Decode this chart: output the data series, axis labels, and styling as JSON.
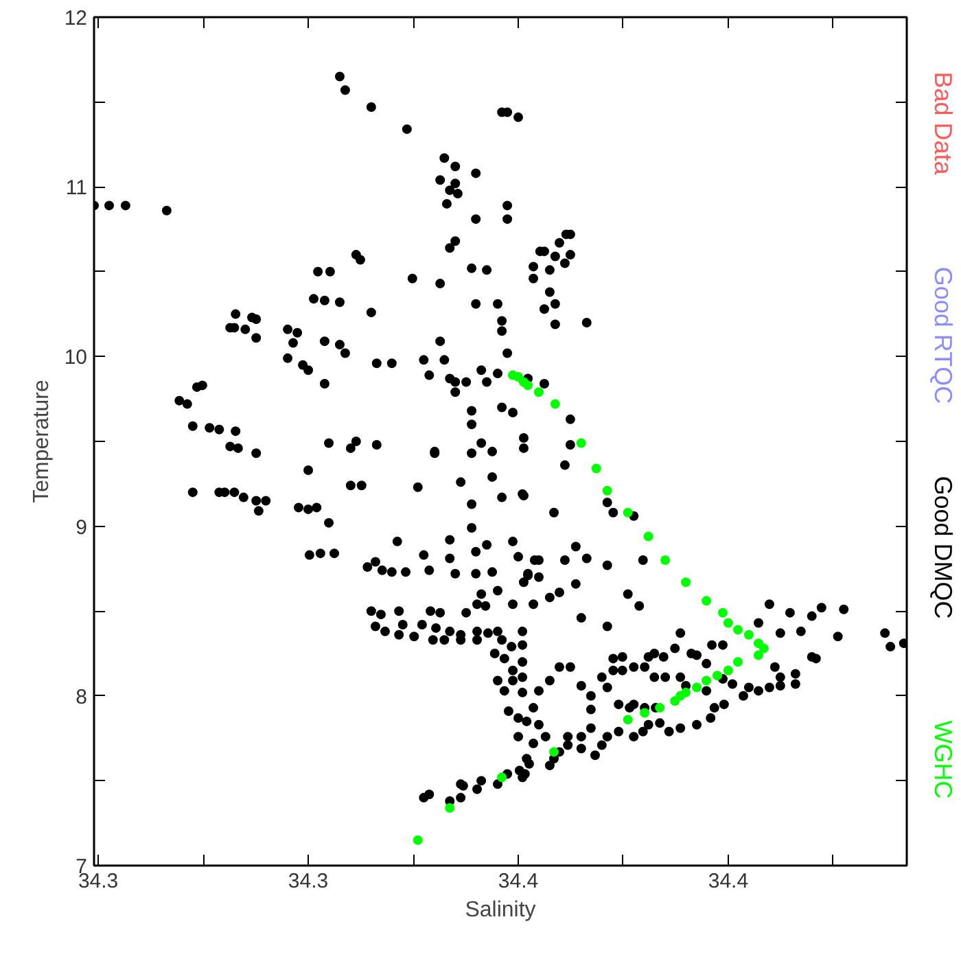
{
  "chart_data": {
    "type": "scatter",
    "xlabel": "Salinity",
    "ylabel": "Temperature",
    "xlim": [
      34.274,
      34.4675
    ],
    "ylim": [
      7,
      12
    ],
    "xticks": [
      {
        "value": 34.275,
        "label": "34.3"
      },
      {
        "value": 34.3,
        "label": null
      },
      {
        "value": 34.325,
        "label": "34.3"
      },
      {
        "value": 34.35,
        "label": null
      },
      {
        "value": 34.375,
        "label": "34.4"
      },
      {
        "value": 34.4,
        "label": null
      },
      {
        "value": 34.425,
        "label": "34.4"
      },
      {
        "value": 34.45,
        "label": null
      }
    ],
    "yticks": [
      7,
      {
        "value": 7.5,
        "label": null
      },
      8,
      {
        "value": 8.5,
        "label": null
      },
      9,
      {
        "value": 9.5,
        "label": null
      },
      10,
      {
        "value": 10.5,
        "label": null
      },
      11,
      {
        "value": 11.5,
        "label": null
      },
      12
    ],
    "grid": false,
    "marker": "circle",
    "series": [
      {
        "name": "Bad Data",
        "color": "#ff5a5a"
      },
      {
        "name": "Good RTQC",
        "color": "#8c8cff"
      },
      {
        "name": "Good DMQC",
        "color": "#000000",
        "x": [
          34.3325,
          34.3338,
          34.34,
          34.3485,
          34.3574,
          34.36,
          34.3649,
          34.3564,
          34.36,
          34.3587,
          34.3606,
          34.358,
          34.3711,
          34.3724,
          34.375,
          34.3649,
          34.3724,
          34.3724,
          34.274,
          34.2776,
          34.2815,
          34.2913,
          34.3587,
          34.36,
          34.3364,
          34.3374,
          34.3273,
          34.3302,
          34.3639,
          34.3675,
          34.3786,
          34.3786,
          34.3498,
          34.3564,
          34.3263,
          34.3289,
          34.3325,
          34.34,
          34.3649,
          34.3701,
          34.3711,
          34.3711,
          34.3724,
          34.3201,
          34.3224,
          34.3214,
          34.3289,
          34.3325,
          34.3338,
          34.3201,
          34.3237,
          34.325,
          34.3289,
          34.3413,
          34.3449,
          34.3525,
          34.3574,
          34.3564,
          34.3538,
          34.3587,
          34.36,
          34.3626,
          34.36,
          34.3662,
          34.3675,
          34.3701,
          34.3711,
          34.3737,
          34.3639,
          34.3639,
          34.3064,
          34.3074,
          34.3077,
          34.31,
          34.3116,
          34.3126,
          34.3126,
          34.2985,
          34.2998,
          34.2943,
          34.2962,
          34.2975,
          34.3015,
          34.3038,
          34.3077,
          34.3064,
          34.3083,
          34.3126,
          34.3299,
          34.3351,
          34.3364,
          34.3413,
          34.3551,
          34.3639,
          34.3662,
          34.3688,
          34.3763,
          34.3763,
          34.3802,
          34.3812,
          34.3838,
          34.3848,
          34.3864,
          34.3874,
          34.3874,
          34.3861,
          34.3825,
          34.3825,
          34.3838,
          34.3812,
          34.3838,
          34.3913,
          34.3773,
          34.3812,
          34.3874,
          34.3874,
          34.2975,
          34.3038,
          34.3051,
          34.3074,
          34.3096,
          34.3126,
          34.3149,
          34.3132,
          34.3227,
          34.325,
          34.327,
          34.3299,
          34.325,
          34.3351,
          34.3377,
          34.3511,
          34.3551,
          34.3613,
          34.3688,
          34.3711,
          34.3763,
          34.3639,
          34.3639,
          34.3253,
          34.3279,
          34.3312,
          34.3462,
          34.3391,
          34.341,
          34.3426,
          34.3449,
          34.3482,
          34.3525,
          34.3538,
          34.3587,
          34.3587,
          34.36,
          34.3649,
          34.3675,
          34.3649,
          34.3688,
          34.3737,
          34.375,
          34.3763,
          34.3773,
          34.3662,
          34.3701,
          34.3737,
          34.3626,
          34.3652,
          34.3672,
          34.34,
          34.3423,
          34.341,
          34.3466,
          34.3475,
          34.3466,
          34.3433,
          34.3541,
          34.3564,
          34.3521,
          34.3554,
          34.3587,
          34.3613,
          34.3502,
          34.3547,
          34.3574,
          34.3613,
          34.3652,
          34.3652,
          34.3678,
          34.3701,
          34.3711,
          34.3734,
          34.376,
          34.376,
          34.3694,
          34.3717,
          34.3737,
          34.376,
          34.3701,
          34.3717,
          34.3737,
          34.376,
          34.376,
          34.3727,
          34.375,
          34.377,
          34.375,
          34.3786,
          34.3776,
          34.3753,
          34.376,
          34.3724,
          34.3701,
          34.3662,
          34.3652,
          34.3613,
          34.3619,
          34.3613,
          34.3587,
          34.3538,
          34.3525,
          34.3861,
          34.376,
          34.3835,
          34.3962,
          34.3976,
          34.4025,
          34.3887,
          34.3913,
          34.3861,
          34.3799,
          34.3789,
          34.3962,
          34.4047,
          34.3773,
          34.3799,
          34.3887,
          34.4011,
          34.4038,
          34.3848,
          34.3825,
          34.3786,
          34.39,
          34.3962,
          34.4136,
          34.4348,
          34.4322,
          34.4397,
          34.4449,
          34.4472,
          34.4525,
          34.4511,
          34.4423,
          34.4374,
          34.4623,
          34.4636,
          34.4668,
          34.4449,
          34.4459,
          34.4361,
          34.441,
          34.441,
          34.4374,
          34.4374,
          34.4348,
          34.4322,
          34.4299,
          34.4286,
          34.426,
          34.4237,
          34.4237,
          34.4211,
          34.4198,
          34.4198,
          34.4175,
          34.4162,
          34.4149,
          34.4136,
          34.4123,
          34.4096,
          34.4074,
          34.406,
          34.4074,
          34.41,
          34.4051,
          34.4025,
          34.3998,
          34.3998,
          34.3976,
          34.3976,
          34.3949,
          34.3962,
          34.3923,
          34.3923,
          34.39,
          34.3874,
          34.3848,
          34.3825,
          34.3799,
          34.3786,
          34.3989,
          34.4015,
          34.4025,
          34.4051,
          34.4077,
          34.4087,
          34.406,
          34.4047,
          34.4025,
          34.3989,
          34.3962,
          34.3949,
          34.3933,
          34.39,
          34.3868,
          34.3848,
          34.3835,
          34.3825,
          34.377,
          34.3766,
          34.4109,
          34.4136,
          34.4175,
          34.4208,
          34.4217,
          34.424,
          34.3799,
          34.3815,
          34.3868,
          34.39,
          34.3923
        ],
        "values": [
          11.65,
          11.57,
          11.47,
          11.34,
          11.17,
          11.12,
          11.08,
          11.04,
          11.02,
          10.98,
          10.96,
          10.9,
          11.44,
          11.44,
          11.41,
          10.81,
          10.81,
          10.89,
          10.89,
          10.89,
          10.89,
          10.86,
          10.64,
          10.68,
          10.6,
          10.57,
          10.5,
          10.5,
          10.52,
          10.51,
          10.53,
          10.46,
          10.46,
          10.43,
          10.34,
          10.33,
          10.32,
          10.26,
          10.31,
          10.31,
          10.21,
          10.15,
          10.02,
          10.16,
          10.14,
          10.08,
          10.09,
          10.07,
          10.02,
          9.99,
          9.95,
          9.92,
          9.84,
          9.96,
          9.96,
          9.98,
          9.98,
          10.09,
          9.89,
          9.87,
          9.85,
          9.85,
          9.79,
          9.92,
          9.85,
          9.9,
          9.7,
          9.67,
          9.68,
          9.6,
          10.17,
          10.17,
          10.25,
          10.16,
          10.23,
          10.22,
          10.11,
          9.82,
          9.83,
          9.74,
          9.72,
          9.59,
          9.58,
          9.57,
          9.56,
          9.47,
          9.46,
          9.43,
          9.49,
          9.46,
          9.5,
          9.48,
          9.43,
          9.43,
          9.49,
          9.44,
          9.52,
          9.46,
          10.62,
          10.62,
          10.59,
          10.67,
          10.72,
          10.72,
          10.6,
          10.55,
          10.51,
          10.38,
          10.31,
          10.28,
          10.19,
          10.2,
          9.87,
          9.84,
          9.63,
          9.48,
          9.2,
          9.2,
          9.2,
          9.2,
          9.17,
          9.15,
          9.15,
          9.09,
          9.11,
          9.1,
          9.11,
          9.02,
          9.33,
          9.24,
          9.24,
          9.23,
          9.44,
          9.26,
          9.29,
          9.17,
          9.18,
          9.13,
          8.99,
          8.83,
          8.84,
          8.84,
          8.91,
          8.76,
          8.79,
          8.74,
          8.73,
          8.73,
          8.83,
          8.74,
          8.92,
          8.81,
          8.72,
          8.85,
          8.89,
          8.72,
          8.73,
          8.91,
          8.82,
          8.67,
          8.71,
          8.6,
          8.62,
          8.54,
          8.49,
          8.54,
          8.53,
          8.5,
          8.48,
          8.41,
          8.5,
          8.42,
          8.36,
          8.38,
          8.5,
          8.49,
          8.42,
          8.4,
          8.38,
          8.36,
          8.35,
          8.33,
          8.33,
          8.33,
          8.38,
          8.33,
          8.37,
          8.38,
          8.33,
          8.29,
          8.38,
          8.3,
          8.25,
          8.22,
          8.15,
          8.2,
          8.09,
          8.03,
          8.09,
          8.11,
          8.02,
          7.91,
          7.87,
          7.85,
          7.76,
          7.72,
          7.6,
          7.56,
          7.52,
          7.54,
          7.48,
          7.5,
          7.45,
          7.48,
          7.47,
          7.4,
          7.38,
          7.42,
          7.4,
          9.36,
          9.19,
          9.08,
          9.14,
          9.08,
          9.06,
          8.88,
          8.81,
          8.8,
          8.8,
          8.8,
          8.77,
          8.8,
          8.72,
          8.7,
          8.66,
          8.6,
          8.53,
          8.61,
          8.58,
          8.54,
          8.46,
          8.41,
          8.37,
          8.54,
          8.43,
          8.49,
          8.47,
          8.52,
          8.51,
          8.35,
          8.38,
          8.37,
          8.37,
          8.29,
          8.31,
          8.23,
          8.22,
          8.17,
          8.13,
          8.07,
          8.11,
          8.06,
          8.05,
          8.03,
          8.05,
          8.0,
          8.07,
          8.1,
          8.3,
          8.3,
          8.19,
          8.03,
          8.24,
          8.25,
          8.06,
          8.11,
          8.28,
          8.23,
          8.25,
          8.23,
          8.11,
          8.11,
          8.17,
          8.17,
          8.23,
          8.15,
          8.22,
          8.15,
          8.11,
          8.05,
          8.0,
          7.92,
          8.06,
          8.17,
          8.17,
          8.09,
          8.03,
          7.93,
          7.95,
          7.93,
          7.95,
          7.93,
          7.93,
          7.84,
          7.83,
          7.79,
          7.76,
          7.79,
          7.76,
          7.71,
          7.65,
          7.69,
          7.71,
          7.67,
          7.63,
          7.59,
          7.63,
          7.54,
          7.79,
          7.81,
          7.83,
          7.87,
          7.93,
          7.95,
          7.83,
          7.76,
          7.76,
          7.76,
          7.81
        ]
      },
      {
        "name": "WGHC",
        "color": "#00ff00",
        "x": [
          34.3737,
          34.375,
          34.3763,
          34.3773,
          34.3799,
          34.3838,
          34.39,
          34.3936,
          34.3962,
          34.4011,
          34.406,
          34.41,
          34.4149,
          34.4198,
          34.4237,
          34.425,
          34.4273,
          34.4299,
          34.4322,
          34.4335,
          34.4322,
          34.4273,
          34.425,
          34.4224,
          34.4198,
          34.4175,
          34.4149,
          34.4136,
          34.4123,
          34.4087,
          34.4051,
          34.4011,
          34.3835,
          34.3711,
          34.3587,
          34.3511
        ],
        "values": [
          9.89,
          9.88,
          9.85,
          9.83,
          9.79,
          9.72,
          9.49,
          9.34,
          9.21,
          9.08,
          8.94,
          8.8,
          8.67,
          8.56,
          8.49,
          8.43,
          8.39,
          8.36,
          8.31,
          8.28,
          8.24,
          8.2,
          8.15,
          8.12,
          8.09,
          8.05,
          8.02,
          8.0,
          7.97,
          7.93,
          7.9,
          7.86,
          7.67,
          7.52,
          7.34,
          7.15
        ]
      }
    ]
  }
}
